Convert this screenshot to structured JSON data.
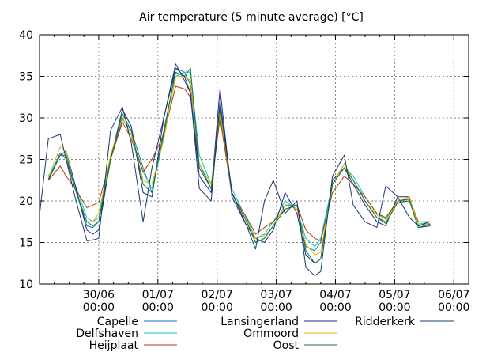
{
  "chart_data": {
    "type": "line",
    "title": "Air temperature (5 minute average) [°C]",
    "xlabel": "",
    "ylabel": "",
    "ylim": [
      10,
      40
    ],
    "yticks": [
      10,
      15,
      20,
      25,
      30,
      35,
      40
    ],
    "xlim": [
      0,
      7.25
    ],
    "xticks": [
      {
        "x": 1,
        "label": [
          "30/06",
          "00:00"
        ]
      },
      {
        "x": 2,
        "label": [
          "01/07",
          "00:00"
        ]
      },
      {
        "x": 3,
        "label": [
          "02/07",
          "00:00"
        ]
      },
      {
        "x": 4,
        "label": [
          "03/07",
          "00:00"
        ]
      },
      {
        "x": 5,
        "label": [
          "04/07",
          "00:00"
        ]
      },
      {
        "x": 6,
        "label": [
          "05/07",
          "00:00"
        ]
      },
      {
        "x": 7,
        "label": [
          "06/07",
          "00:00"
        ]
      }
    ],
    "x_unit": "days",
    "grid": true,
    "legend_position": "bottom",
    "series": [
      {
        "name": "Capelle",
        "color": "#1f6fb4",
        "points": [
          [
            0.15,
            22.6
          ],
          [
            0.35,
            25.8
          ],
          [
            0.45,
            25.0
          ],
          [
            0.6,
            21.5
          ],
          [
            0.8,
            17.0
          ],
          [
            0.9,
            16.8
          ],
          [
            1.0,
            17.5
          ],
          [
            1.2,
            25.0
          ],
          [
            1.4,
            29.8
          ],
          [
            1.55,
            28.5
          ],
          [
            1.75,
            24.0
          ],
          [
            1.9,
            21.0
          ],
          [
            2.1,
            28.0
          ],
          [
            2.3,
            36.0
          ],
          [
            2.45,
            35.5
          ],
          [
            2.55,
            34.0
          ],
          [
            2.7,
            24.5
          ],
          [
            2.9,
            21.5
          ],
          [
            3.05,
            31.0
          ],
          [
            3.25,
            21.0
          ],
          [
            3.5,
            17.5
          ],
          [
            3.65,
            15.0
          ],
          [
            3.8,
            15.5
          ],
          [
            3.95,
            17.0
          ],
          [
            4.15,
            19.5
          ],
          [
            4.35,
            19.5
          ],
          [
            4.5,
            14.5
          ],
          [
            4.65,
            14.0
          ],
          [
            4.75,
            15.0
          ],
          [
            4.95,
            22.0
          ],
          [
            5.15,
            24.5
          ],
          [
            5.3,
            22.5
          ],
          [
            5.5,
            20.0
          ],
          [
            5.7,
            18.0
          ],
          [
            5.85,
            17.5
          ],
          [
            6.05,
            20.0
          ],
          [
            6.25,
            20.3
          ],
          [
            6.4,
            17.0
          ],
          [
            6.6,
            17.3
          ]
        ]
      },
      {
        "name": "Delfshaven",
        "color": "#00c8c8",
        "points": [
          [
            0.15,
            23.0
          ],
          [
            0.35,
            25.5
          ],
          [
            0.45,
            25.5
          ],
          [
            0.6,
            22.0
          ],
          [
            0.8,
            18.0
          ],
          [
            0.9,
            17.5
          ],
          [
            1.0,
            18.0
          ],
          [
            1.2,
            25.5
          ],
          [
            1.4,
            30.0
          ],
          [
            1.55,
            28.0
          ],
          [
            1.75,
            23.5
          ],
          [
            1.9,
            21.5
          ],
          [
            2.1,
            27.5
          ],
          [
            2.3,
            35.0
          ],
          [
            2.45,
            35.5
          ],
          [
            2.55,
            35.5
          ],
          [
            2.7,
            25.5
          ],
          [
            2.9,
            22.0
          ],
          [
            3.05,
            30.5
          ],
          [
            3.25,
            21.5
          ],
          [
            3.5,
            17.8
          ],
          [
            3.65,
            15.5
          ],
          [
            3.8,
            16.0
          ],
          [
            3.95,
            17.5
          ],
          [
            4.15,
            20.0
          ],
          [
            4.35,
            19.0
          ],
          [
            4.5,
            15.5
          ],
          [
            4.65,
            14.5
          ],
          [
            4.75,
            15.5
          ],
          [
            4.95,
            22.0
          ],
          [
            5.15,
            24.0
          ],
          [
            5.3,
            23.0
          ],
          [
            5.5,
            20.5
          ],
          [
            5.7,
            18.5
          ],
          [
            5.85,
            17.8
          ],
          [
            6.05,
            20.0
          ],
          [
            6.25,
            20.0
          ],
          [
            6.4,
            17.2
          ],
          [
            6.6,
            17.5
          ]
        ]
      },
      {
        "name": "Heijplaat",
        "color": "#b03a00",
        "points": [
          [
            0.15,
            22.5
          ],
          [
            0.35,
            24.2
          ],
          [
            0.45,
            23.0
          ],
          [
            0.6,
            21.5
          ],
          [
            0.8,
            19.2
          ],
          [
            0.9,
            19.5
          ],
          [
            1.0,
            19.8
          ],
          [
            1.2,
            25.0
          ],
          [
            1.4,
            29.5
          ],
          [
            1.55,
            27.5
          ],
          [
            1.75,
            23.5
          ],
          [
            1.9,
            25.0
          ],
          [
            2.1,
            28.0
          ],
          [
            2.3,
            33.8
          ],
          [
            2.45,
            33.5
          ],
          [
            2.55,
            32.5
          ],
          [
            2.7,
            24.0
          ],
          [
            2.9,
            21.5
          ],
          [
            3.05,
            30.0
          ],
          [
            3.25,
            20.8
          ],
          [
            3.5,
            18.0
          ],
          [
            3.65,
            16.0
          ],
          [
            3.8,
            16.8
          ],
          [
            3.95,
            17.5
          ],
          [
            4.15,
            19.0
          ],
          [
            4.35,
            19.5
          ],
          [
            4.5,
            16.5
          ],
          [
            4.65,
            15.5
          ],
          [
            4.75,
            15.2
          ],
          [
            4.95,
            21.0
          ],
          [
            5.15,
            23.0
          ],
          [
            5.3,
            22.0
          ],
          [
            5.5,
            20.5
          ],
          [
            5.7,
            18.5
          ],
          [
            5.85,
            18.0
          ],
          [
            6.05,
            20.0
          ],
          [
            6.25,
            20.2
          ],
          [
            6.4,
            17.5
          ],
          [
            6.6,
            17.5
          ]
        ]
      },
      {
        "name": "Lansingerland",
        "color": "#1a2a8a",
        "points": [
          [
            0.15,
            22.5
          ],
          [
            0.35,
            25.5
          ],
          [
            0.45,
            26.0
          ],
          [
            0.6,
            22.0
          ],
          [
            0.8,
            16.5
          ],
          [
            0.9,
            16.0
          ],
          [
            1.0,
            16.5
          ],
          [
            1.2,
            25.0
          ],
          [
            1.4,
            31.0
          ],
          [
            1.55,
            29.0
          ],
          [
            1.75,
            21.0
          ],
          [
            1.9,
            20.5
          ],
          [
            2.1,
            30.0
          ],
          [
            2.3,
            36.5
          ],
          [
            2.45,
            34.5
          ],
          [
            2.55,
            33.0
          ],
          [
            2.7,
            23.0
          ],
          [
            2.9,
            21.0
          ],
          [
            3.05,
            33.5
          ],
          [
            3.25,
            20.5
          ],
          [
            3.5,
            17.0
          ],
          [
            3.65,
            15.5
          ],
          [
            3.8,
            15.0
          ],
          [
            3.95,
            16.5
          ],
          [
            4.15,
            21.0
          ],
          [
            4.35,
            18.5
          ],
          [
            4.5,
            13.5
          ],
          [
            4.65,
            12.5
          ],
          [
            4.75,
            13.0
          ],
          [
            4.95,
            22.5
          ],
          [
            5.15,
            24.0
          ],
          [
            5.3,
            22.0
          ],
          [
            5.5,
            19.5
          ],
          [
            5.7,
            17.5
          ],
          [
            5.85,
            17.0
          ],
          [
            6.05,
            20.5
          ],
          [
            6.25,
            20.5
          ],
          [
            6.4,
            16.8
          ],
          [
            6.6,
            17.0
          ]
        ]
      },
      {
        "name": "Ommoord",
        "color": "#f0b400",
        "points": [
          [
            0.15,
            22.8
          ],
          [
            0.35,
            26.5
          ],
          [
            0.45,
            26.0
          ],
          [
            0.6,
            21.5
          ],
          [
            0.8,
            17.5
          ],
          [
            0.9,
            17.5
          ],
          [
            1.0,
            18.5
          ],
          [
            1.2,
            25.5
          ],
          [
            1.4,
            30.0
          ],
          [
            1.55,
            28.0
          ],
          [
            1.75,
            22.5
          ],
          [
            1.9,
            22.0
          ],
          [
            2.1,
            27.5
          ],
          [
            2.3,
            35.0
          ],
          [
            2.45,
            35.0
          ],
          [
            2.55,
            34.5
          ],
          [
            2.7,
            24.5
          ],
          [
            2.9,
            22.0
          ],
          [
            3.05,
            31.0
          ],
          [
            3.25,
            21.0
          ],
          [
            3.5,
            17.5
          ],
          [
            3.65,
            15.5
          ],
          [
            3.8,
            15.8
          ],
          [
            3.95,
            17.0
          ],
          [
            4.15,
            19.5
          ],
          [
            4.35,
            19.0
          ],
          [
            4.5,
            14.8
          ],
          [
            4.65,
            13.5
          ],
          [
            4.75,
            13.8
          ],
          [
            4.95,
            22.0
          ],
          [
            5.15,
            24.5
          ],
          [
            5.3,
            22.5
          ],
          [
            5.5,
            20.0
          ],
          [
            5.7,
            18.3
          ],
          [
            5.85,
            17.5
          ],
          [
            6.05,
            20.0
          ],
          [
            6.25,
            20.5
          ],
          [
            6.4,
            17.0
          ],
          [
            6.6,
            17.3
          ]
        ]
      },
      {
        "name": "Oost",
        "color": "#0a7a3a",
        "points": [
          [
            0.15,
            22.5
          ],
          [
            0.35,
            25.5
          ],
          [
            0.45,
            25.5
          ],
          [
            0.6,
            21.5
          ],
          [
            0.8,
            17.5
          ],
          [
            0.9,
            17.0
          ],
          [
            1.0,
            17.5
          ],
          [
            1.2,
            25.0
          ],
          [
            1.4,
            30.5
          ],
          [
            1.55,
            28.5
          ],
          [
            1.75,
            22.0
          ],
          [
            1.9,
            21.0
          ],
          [
            2.1,
            28.5
          ],
          [
            2.3,
            35.5
          ],
          [
            2.45,
            35.0
          ],
          [
            2.55,
            36.0
          ],
          [
            2.7,
            24.0
          ],
          [
            2.9,
            21.5
          ],
          [
            3.05,
            31.5
          ],
          [
            3.25,
            21.0
          ],
          [
            3.5,
            17.5
          ],
          [
            3.65,
            15.0
          ],
          [
            3.8,
            15.5
          ],
          [
            3.95,
            17.0
          ],
          [
            4.15,
            19.0
          ],
          [
            4.35,
            19.5
          ],
          [
            4.5,
            14.0
          ],
          [
            4.65,
            12.5
          ],
          [
            4.75,
            13.0
          ],
          [
            4.95,
            22.0
          ],
          [
            5.15,
            24.0
          ],
          [
            5.3,
            22.5
          ],
          [
            5.5,
            20.0
          ],
          [
            5.7,
            18.0
          ],
          [
            5.85,
            17.3
          ],
          [
            6.05,
            19.8
          ],
          [
            6.25,
            20.0
          ],
          [
            6.4,
            16.8
          ],
          [
            6.6,
            17.2
          ]
        ]
      },
      {
        "name": "Ridderkerk",
        "color": "#1a3a6e",
        "points": [
          [
            0.0,
            18.3
          ],
          [
            0.15,
            27.5
          ],
          [
            0.35,
            28.0
          ],
          [
            0.45,
            25.0
          ],
          [
            0.6,
            20.5
          ],
          [
            0.8,
            15.2
          ],
          [
            0.9,
            15.3
          ],
          [
            1.0,
            15.5
          ],
          [
            1.2,
            28.5
          ],
          [
            1.4,
            31.3
          ],
          [
            1.55,
            27.0
          ],
          [
            1.75,
            17.5
          ],
          [
            1.9,
            24.0
          ],
          [
            2.1,
            30.0
          ],
          [
            2.3,
            36.0
          ],
          [
            2.45,
            35.0
          ],
          [
            2.55,
            33.0
          ],
          [
            2.7,
            21.5
          ],
          [
            2.9,
            20.0
          ],
          [
            3.05,
            32.0
          ],
          [
            3.25,
            21.0
          ],
          [
            3.5,
            17.0
          ],
          [
            3.65,
            14.2
          ],
          [
            3.8,
            20.0
          ],
          [
            3.95,
            22.5
          ],
          [
            4.15,
            18.5
          ],
          [
            4.35,
            20.0
          ],
          [
            4.5,
            12.0
          ],
          [
            4.65,
            11.0
          ],
          [
            4.75,
            11.5
          ],
          [
            4.95,
            23.0
          ],
          [
            5.15,
            25.5
          ],
          [
            5.3,
            19.5
          ],
          [
            5.5,
            17.5
          ],
          [
            5.7,
            16.8
          ],
          [
            5.85,
            21.8
          ],
          [
            6.05,
            20.5
          ],
          [
            6.25,
            18.0
          ],
          [
            6.4,
            17.0
          ],
          [
            6.6,
            17.5
          ]
        ]
      }
    ]
  }
}
